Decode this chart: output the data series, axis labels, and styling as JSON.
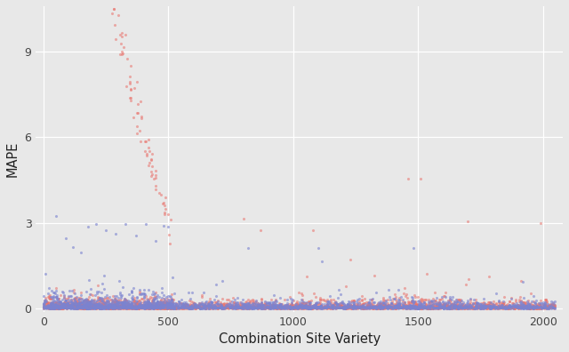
{
  "title": "",
  "xlabel": "Combination Site Variety",
  "ylabel": "MAPE",
  "xlim": [
    -30,
    2080
  ],
  "ylim": [
    -0.12,
    10.6
  ],
  "yticks": [
    0,
    3,
    6,
    9
  ],
  "xticks": [
    0,
    500,
    1000,
    1500,
    2000
  ],
  "background_color": "#e8e8e8",
  "grid_color": "#ffffff",
  "point_size": 5,
  "alpha_red": 0.55,
  "alpha_blue": 0.6,
  "color_red": "#e8736c",
  "color_blue": "#7b83d0",
  "seed": 42
}
